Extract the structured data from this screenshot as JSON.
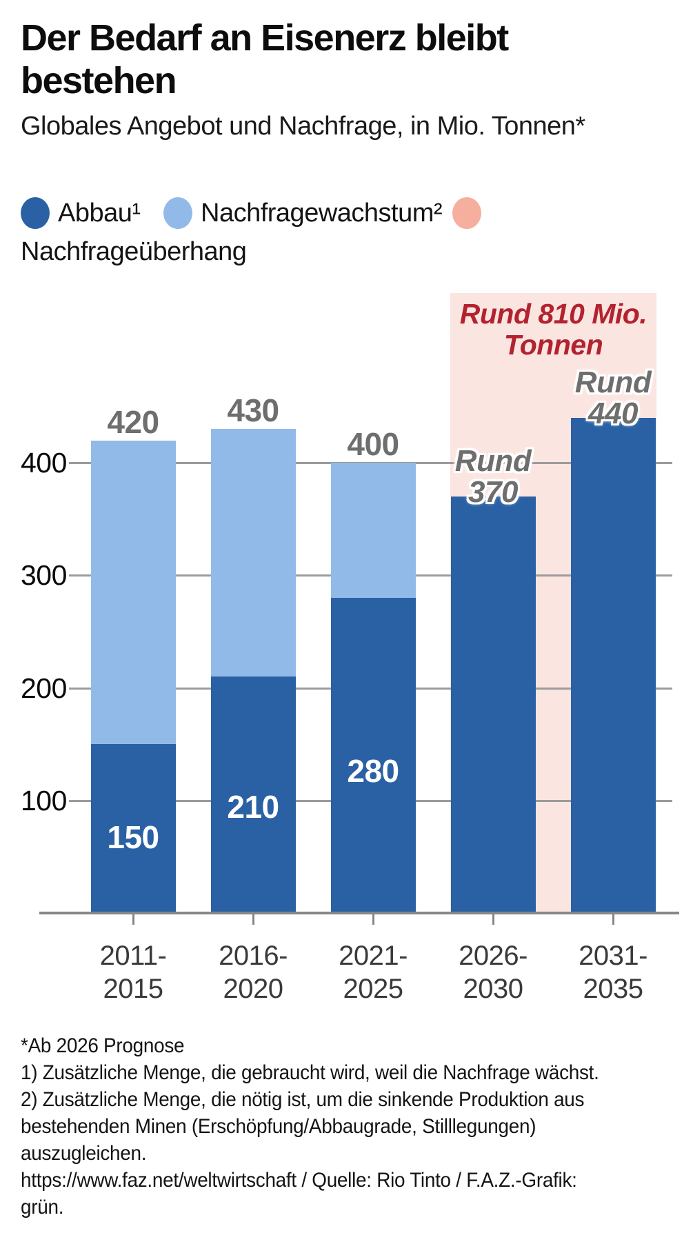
{
  "header": {
    "title_lines": [
      "Der Bedarf an Eisenerz bleibt",
      "bestehen"
    ],
    "subtitle": "Globales Angebot und Nachfrage, in Mio. Tonnen*"
  },
  "legend": {
    "items": [
      {
        "label": "Abbau¹",
        "color": "#2a61a4"
      },
      {
        "label": "Nachfragewachstum²",
        "color": "#92bae9"
      },
      {
        "label": "Nachfrageüberhang",
        "color": "#f6ae9f"
      }
    ]
  },
  "chart_data": {
    "type": "bar",
    "stacked": true,
    "title": "Der Bedarf an Eisenerz bleibt bestehen",
    "subtitle": "Globales Angebot und Nachfrage, in Mio. Tonnen*",
    "unit": "Mio. Tonnen",
    "categories": [
      {
        "line1": "2011-",
        "line2": "2015"
      },
      {
        "line1": "2016-",
        "line2": "2020"
      },
      {
        "line1": "2021-",
        "line2": "2025"
      },
      {
        "line1": "2026-",
        "line2": "2030"
      },
      {
        "line1": "2031-",
        "line2": "2035"
      }
    ],
    "series": [
      {
        "name": "Abbau",
        "color": "#2a61a4",
        "values": [
          150,
          210,
          280,
          370,
          440
        ]
      },
      {
        "name": "Nachfragewachstum",
        "color": "#92bae9",
        "values": [
          270,
          220,
          120,
          null,
          null
        ]
      }
    ],
    "totals": [
      420,
      430,
      400,
      370,
      440
    ],
    "inner_labels": [
      "150",
      "210",
      "280",
      null,
      null
    ],
    "top_labels": [
      [
        "420"
      ],
      [
        "430"
      ],
      [
        "400"
      ],
      [
        "Rund",
        "370"
      ],
      [
        "Rund",
        "440"
      ]
    ],
    "top_label_styles": [
      "actual",
      "actual",
      "actual",
      "forecast",
      "forecast"
    ],
    "yticks": [
      100,
      200,
      300,
      400
    ],
    "ylim": [
      0,
      490
    ],
    "grid": "horizontal",
    "legend_position": "top",
    "annotation": {
      "lines": [
        "Rund 810 Mio.",
        "Tonnen"
      ],
      "value": "810",
      "color": "#b2232f",
      "bg": "#fbe5e0",
      "spans_categories": [
        3,
        4
      ]
    },
    "colors": {
      "abbau": "#2a61a4",
      "nachfragewachstum": "#92bae9",
      "nachfrageueberhang_dot": "#f6ae9f",
      "gap_background": "#fbe5e0",
      "gap_text": "#b2232f",
      "value_label_gray": "#6e6e6e",
      "value_label_white": "#ffffff",
      "gridline": "#9b9b9b",
      "axis": "#878787"
    }
  },
  "footnotes": {
    "lines": [
      "*Ab 2026 Prognose",
      "1) Zusätzliche Menge, die gebraucht wird, weil die Nachfrage wächst.",
      "2) Zusätzliche Menge, die nötig ist, um die sinkende Produktion aus",
      "bestehenden Minen (Erschöpfung/Abbaugrade, Stilllegungen)",
      "auszugleichen.",
      "https://www.faz.net/weltwirtschaft / Quelle: Rio Tinto / F.A.Z.-Grafik:",
      "grün."
    ]
  }
}
